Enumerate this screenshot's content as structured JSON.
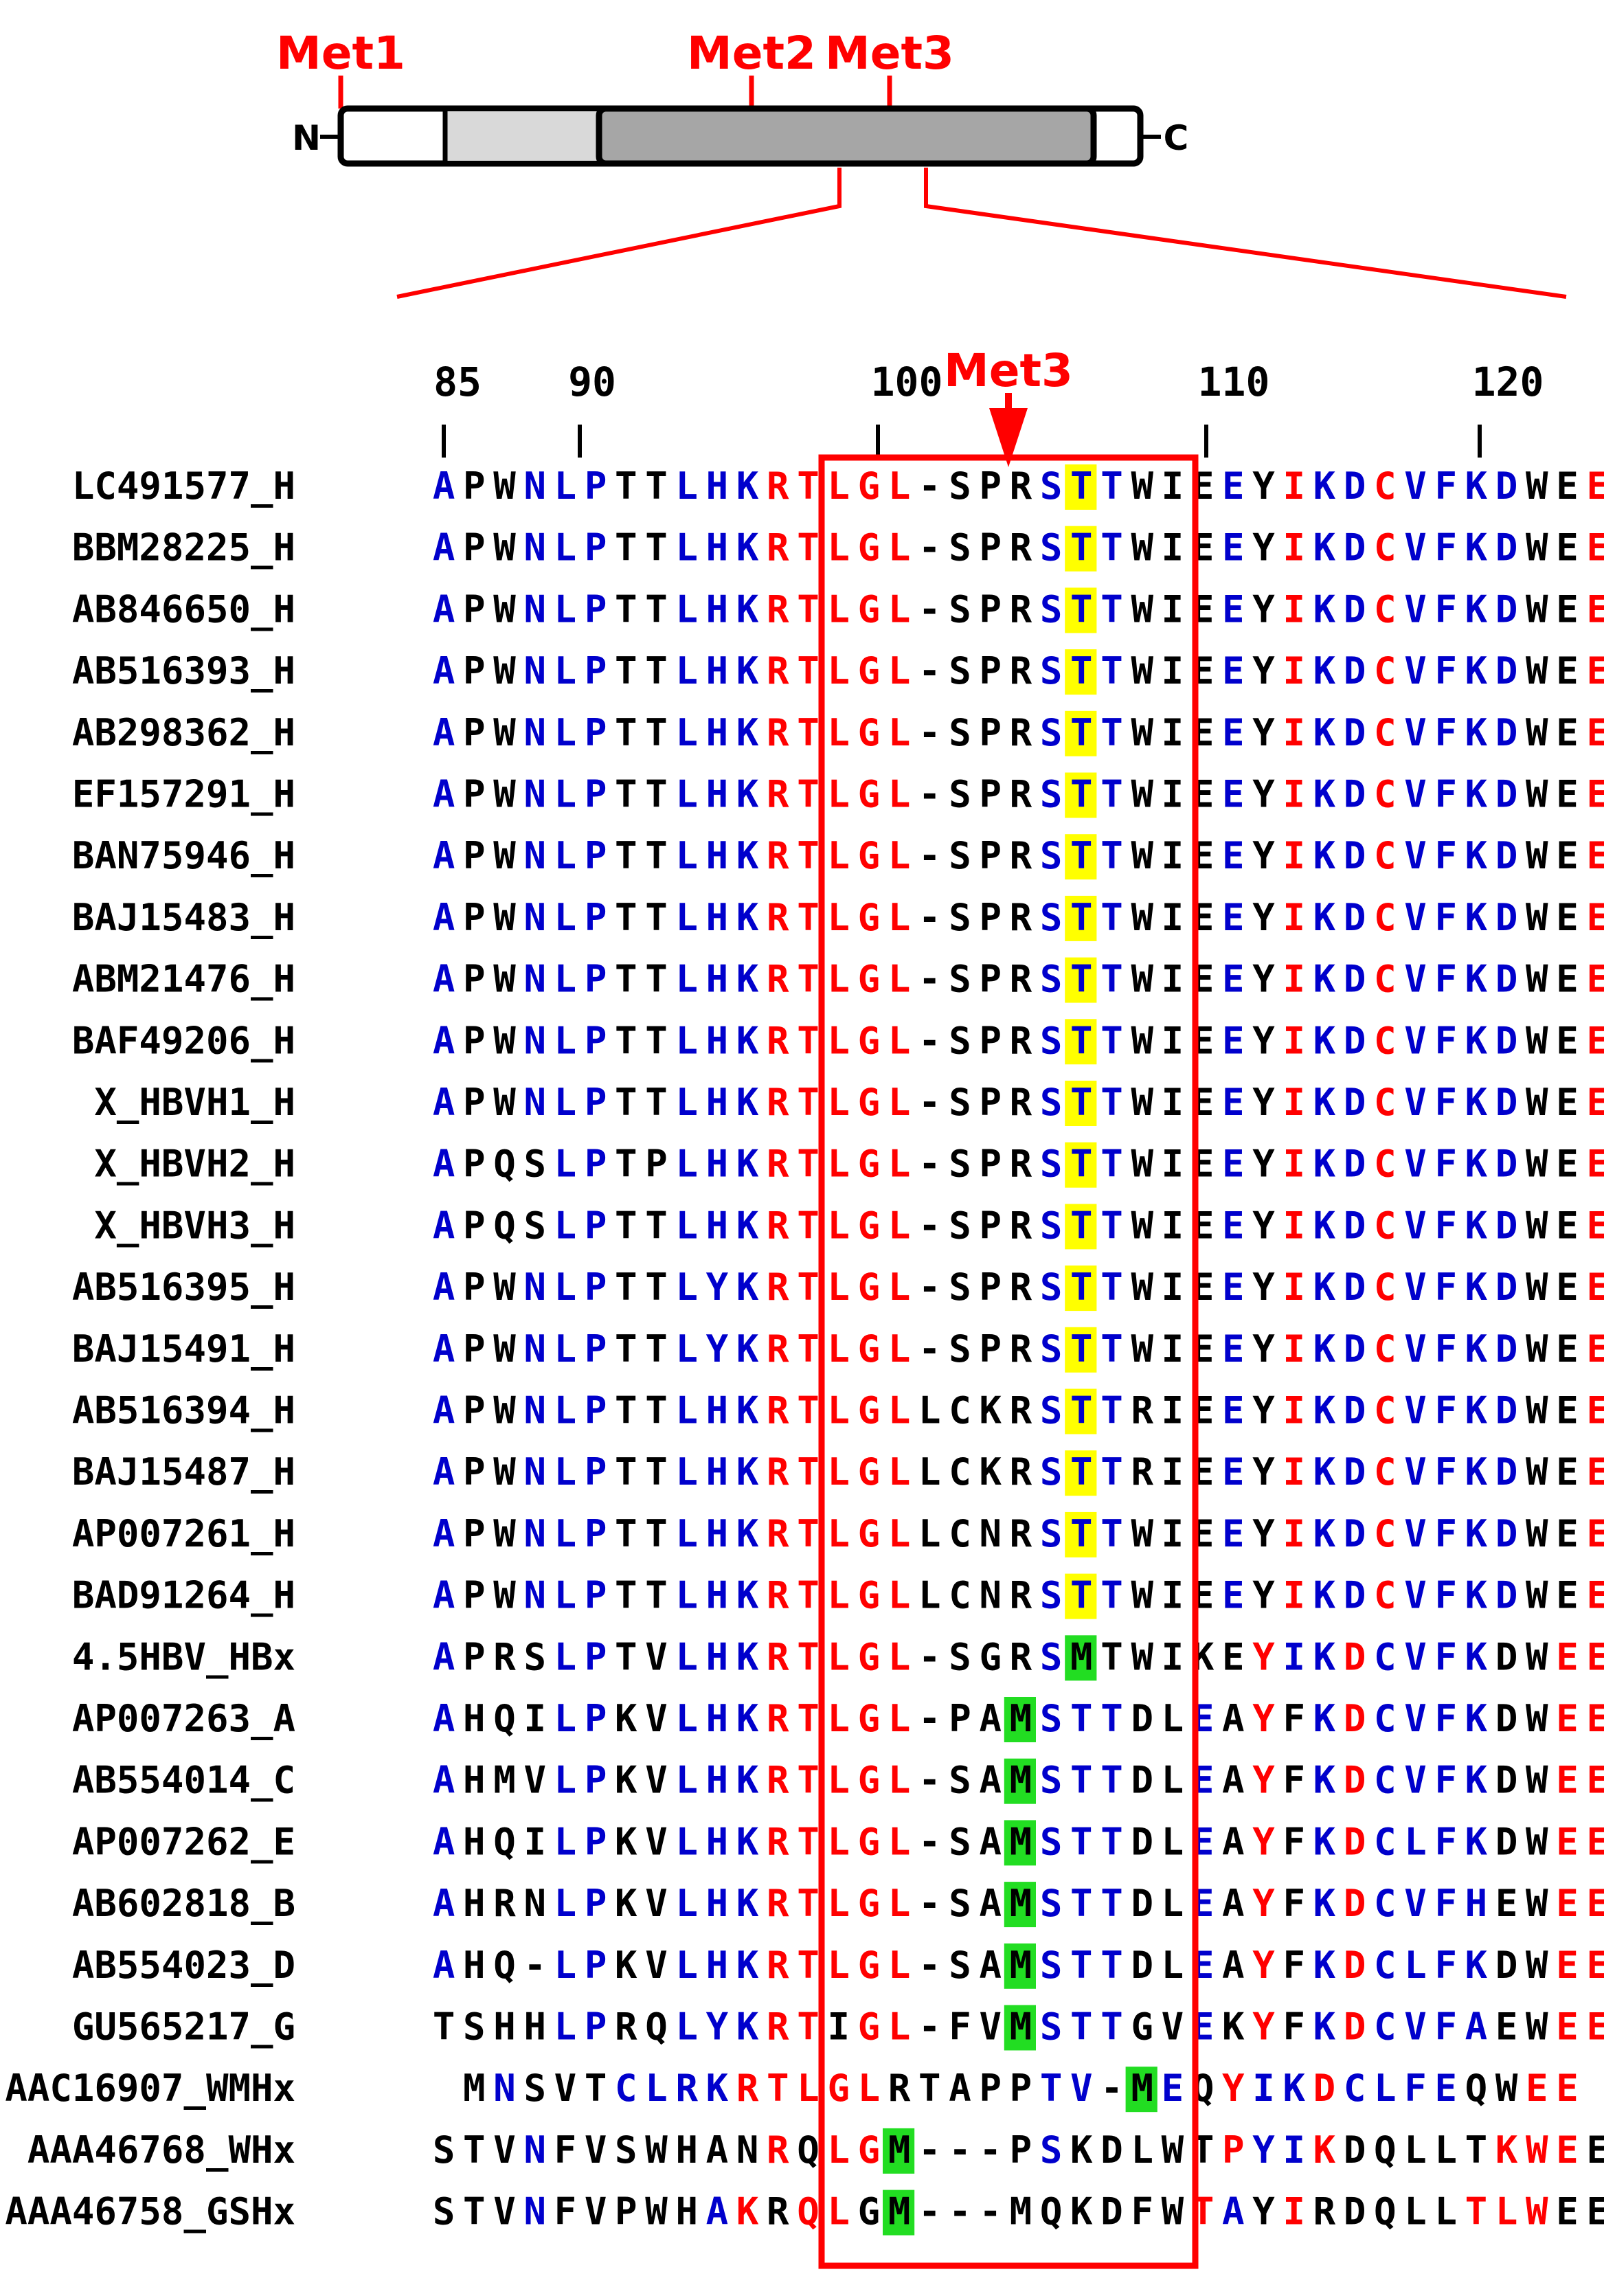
{
  "domain_structure": {
    "met_labels": [
      "Met1",
      "Met2",
      "Met3"
    ],
    "n_terminus": "N",
    "c_terminus": "C"
  },
  "alignment": {
    "focus_label": "Met3",
    "position_ticks": [
      "85",
      "90",
      "100",
      "110",
      "120"
    ],
    "colors": {
      "blue": "#0000cc",
      "red": "#ff0000",
      "black": "#000000",
      "highlight_yellow": "#ffff00",
      "highlight_green": "#22dd22",
      "box": "#ff0000"
    },
    "rows": [
      {
        "name": "LC491577_H",
        "seq": "APWNLPTTLHKRTLGL-SPRSTTWIEEYIKDCVFKDWEE",
        "colors": "BKKBBBKKBBBRRRRRKKKKBHBKKKBKRBBRBBBBKKRRR",
        "hl": [
          {
            "col": 21,
            "color": "yellow"
          }
        ]
      },
      {
        "name": "BBM28225_H",
        "seq": "APWNLPTTLHKRTLGL-SPRSTTWIEEYIKDCVFKDWEE",
        "colors": "BKKBBBKKBBBRRRRRKKKKBHBKKKBKRBBRBBBBKKRRR",
        "hl": [
          {
            "col": 21,
            "color": "yellow"
          }
        ]
      },
      {
        "name": "AB846650_H",
        "seq": "APWNLPTTLHKRTLGL-SPRSTTWIEEYIKDCVFKDWEE",
        "colors": "BKKBBBKKBBBRRRRRKKKKBHBKKKBKRBBRBBBBKKRRR",
        "hl": [
          {
            "col": 21,
            "color": "yellow"
          }
        ]
      },
      {
        "name": "AB516393_H",
        "seq": "APWNLPTTLHKRTLGL-SPRSTTWIEEYIKDCVFKDWEE",
        "colors": "BKKBBBKKBBBRRRRRKKKKBHBKKKBKRBBRBBBBKKRRR",
        "hl": [
          {
            "col": 21,
            "color": "yellow"
          }
        ]
      },
      {
        "name": "AB298362_H",
        "seq": "APWNLPTTLHKRTLGL-SPRSTTWIEEYIKDCVFKDWEE",
        "colors": "BKKBBBKKBBBRRRRRKKKKBHBKKKBKRBBRBBBBKKRRR",
        "hl": [
          {
            "col": 21,
            "color": "yellow"
          }
        ]
      },
      {
        "name": "EF157291_H",
        "seq": "APWNLPTTLHKRTLGL-SPRSTTWIEEYIKDCVFKDWEE",
        "colors": "BKKBBBKKBBBRRRRRKKKKBHBKKKBKRBBRBBBBKKRRR",
        "hl": [
          {
            "col": 21,
            "color": "yellow"
          }
        ]
      },
      {
        "name": "BAN75946_H",
        "seq": "APWNLPTTLHKRTLGL-SPRSTTWIEEYIKDCVFKDWEE",
        "colors": "BKKBBBKKBBBRRRRRKKKKBHBKKKBKRBBRBBBBKKRRR",
        "hl": [
          {
            "col": 21,
            "color": "yellow"
          }
        ]
      },
      {
        "name": "BAJ15483_H",
        "seq": "APWNLPTTLHKRTLGL-SPRSTTWIEEYIKDCVFKDWEE",
        "colors": "BKKBBBKKBBBRRRRRKKKKBHBKKKBKRBBRBBBBKKRRR",
        "hl": [
          {
            "col": 21,
            "color": "yellow"
          }
        ]
      },
      {
        "name": "ABM21476_H",
        "seq": "APWNLPTTLHKRTLGL-SPRSTTWIEEYIKDCVFKDWEE",
        "colors": "BKKBBBKKBBBRRRRRKKKKBHBKKKBKRBBRBBBBKKRRR",
        "hl": [
          {
            "col": 21,
            "color": "yellow"
          }
        ]
      },
      {
        "name": "BAF49206_H",
        "seq": "APWNLPTTLHKRTLGL-SPRSTTWIEEYIKDCVFKDWEE",
        "colors": "BKKBBBKKBBBRRRRRKKKKBHBKKKBKRBBRBBBBKKRRR",
        "hl": [
          {
            "col": 21,
            "color": "yellow"
          }
        ]
      },
      {
        "name": "X_HBVH1_H",
        "seq": "APWNLPTTLHKRTLGL-SPRSTTWIEEYIKDCVFKDWEE",
        "colors": "BKKBBBKKBBBRRRRRKKKKBHBKKKBKRBBRBBBBKKRRR",
        "hl": [
          {
            "col": 21,
            "color": "yellow"
          }
        ]
      },
      {
        "name": "X_HBVH2_H",
        "seq": "APQSLPTPLHKRTLGL-SPRSTTWIEEYIKDCVFKDWEE",
        "colors": "BKKKBBKKBBBRRRRRKKKKBHBKKKBKRBBRBBBBKKRRR",
        "hl": [
          {
            "col": 21,
            "color": "yellow"
          }
        ]
      },
      {
        "name": "X_HBVH3_H",
        "seq": "APQSLPTTLHKRTLGL-SPRSTTWIEEYIKDCVFKDWEE",
        "colors": "BKKKBBKKBBBRRRRRKKKKBHBKKKBKRBBRBBBBKKRRR",
        "hl": [
          {
            "col": 21,
            "color": "yellow"
          }
        ]
      },
      {
        "name": "AB516395_H",
        "seq": "APWNLPTTLYKRTLGL-SPRSTTWIEEYIKDCVFKDWEE",
        "colors": "BKKBBBKKBBBRRRRRKKKKBHBKKKBKRBBRBBBBKKRRR",
        "hl": [
          {
            "col": 21,
            "color": "yellow"
          }
        ]
      },
      {
        "name": "BAJ15491_H",
        "seq": "APWNLPTTLYKRTLGL-SPRSTTWIEEYIKDCVFKDWEE",
        "colors": "BKKBBBKKBBBRRRRRKKKKBHBKKKBKRBBRBBBBKKRRR",
        "hl": [
          {
            "col": 21,
            "color": "yellow"
          }
        ]
      },
      {
        "name": "AB516394_H",
        "seq": "APWNLPTTLHKRTLGLLCKRSTTRIEEYIKDCVFKDWEE",
        "colors": "BKKBBBKKBBBRRRRRKKKKBHBKKKBKRBBRBBBBKKRRR",
        "hl": [
          {
            "col": 21,
            "color": "yellow"
          }
        ]
      },
      {
        "name": "BAJ15487_H",
        "seq": "APWNLPTTLHKRTLGLLCKRSTTRIEEYIKDCVFKDWEE",
        "colors": "BKKBBBKKBBBRRRRRKKKKBHBKKKBKRBBRBBBBKKRRR",
        "hl": [
          {
            "col": 21,
            "color": "yellow"
          }
        ]
      },
      {
        "name": "AP007261_H",
        "seq": "APWNLPTTLHKRTLGLLCNRSTTWIEEYIKDCVFKDWEE",
        "colors": "BKKBBBKKBBBRRRRRKKKKBHBKKKBKRBBRBBBBKKRRR",
        "hl": [
          {
            "col": 21,
            "color": "yellow"
          }
        ]
      },
      {
        "name": "BAD91264_H",
        "seq": "APWNLPTTLHKRTLGLLCNRSTTWIEEYIKDCVFKDWEE",
        "colors": "BKKBBBKKBBBRRRRRKKKKBHBKKKBKRBBRBBBBKKRRR",
        "hl": [
          {
            "col": 21,
            "color": "yellow"
          }
        ]
      },
      {
        "name": "4.5HBV_HBx",
        "seq": "APRSLPTVLHKRTLGL-SGRSMTWIKEYIKDCVFKDWEE",
        "colors": "BKKKBBKKBBBRRRRRKKKKBKKKKKKRBBRBBBBKKRRR",
        "hl": [
          {
            "col": 21,
            "color": "green"
          }
        ]
      },
      {
        "name": "AP007263_A",
        "seq": "AHQILPKVLHKRTLGL-PAMSTTDLEAYFKDCVFKDWEE",
        "colors": "BKKKBBKKBBBRRRRRKKKKBBBKKBKRKBRBBBBKKRRR",
        "hl": [
          {
            "col": 19,
            "color": "green"
          }
        ]
      },
      {
        "name": "AB554014_C",
        "seq": "AHMVLPKVLHKRTLGL-SAMSTTDLEAYFKDCVFKDWEE",
        "colors": "BKKKBBKKBBBRRRRRKKKKBBBKKBKRKBRBBBBKKRRR",
        "hl": [
          {
            "col": 19,
            "color": "green"
          }
        ]
      },
      {
        "name": "AP007262_E",
        "seq": "AHQILPKVLHKRTLGL-SAMSTTDLEAYFKDCLFKDWEE",
        "colors": "BKKKBBKKBBBRRRRRKKKKBBBKKBKRKBRBBBBKKRRR",
        "hl": [
          {
            "col": 19,
            "color": "green"
          }
        ]
      },
      {
        "name": "AB602818_B",
        "seq": "AHRNLPKVLHKRTLGL-SAMSTTDLEAYFKDCVFHEWEE",
        "colors": "BKKKBBKKBBBRRRRRKKKKBBBKKBKRKBRBBBBKKRRR",
        "hl": [
          {
            "col": 19,
            "color": "green"
          }
        ]
      },
      {
        "name": "AB554023_D",
        "seq": "AHQ-LPKVLHKRTLGL-SAMSTTDLEAYFKDCLFKDWEE",
        "colors": "BKKKBBKKBBBRRRRRKKKKBBBKKBKRKBRBBBBKKRRR",
        "hl": [
          {
            "col": 19,
            "color": "green"
          }
        ]
      },
      {
        "name": "GU565217_G",
        "seq": "TSHHLPRQLYKRTIGL-FVMSTTGVEKYFKDCVFAEWEE",
        "colors": "KKKKBBKKBBBRRKRRKKKKBBBKKBKRKBRBBBBKKRRR",
        "hl": [
          {
            "col": 19,
            "color": "green"
          }
        ]
      },
      {
        "name": "AAC16907_WMHx",
        "seq": " MNSVTCLRKRTLGLRTAPPTV-MEQYIKDCLFEQWEE",
        "colors": "KKBKKKBBBBRRRRRKKKKKBBKKBKRBBRBBBBKKRRR",
        "hl": [
          {
            "col": 23,
            "color": "green"
          }
        ]
      },
      {
        "name": "AAA46768_WHx",
        "seq": "STVNFVSWHANRQLGM---PSKDLWTPYIKDQLLTKWEE",
        "colors": "KKKBKKKKKKKRKRRKKKKKBKKKKKRBBRKKKKKRRR",
        "hl": [
          {
            "col": 15,
            "color": "green"
          }
        ]
      },
      {
        "name": "AAA46758_GSHx",
        "seq": "STVNFVPWHAKRQLGM---MQKDFWTAYIRDQLLTLWEE",
        "colors": "KKKBKKKKKBRKRRKKKKKKKKKKKRBKRKKKKKRRR",
        "hl": [
          {
            "col": 15,
            "color": "green"
          }
        ]
      }
    ]
  }
}
